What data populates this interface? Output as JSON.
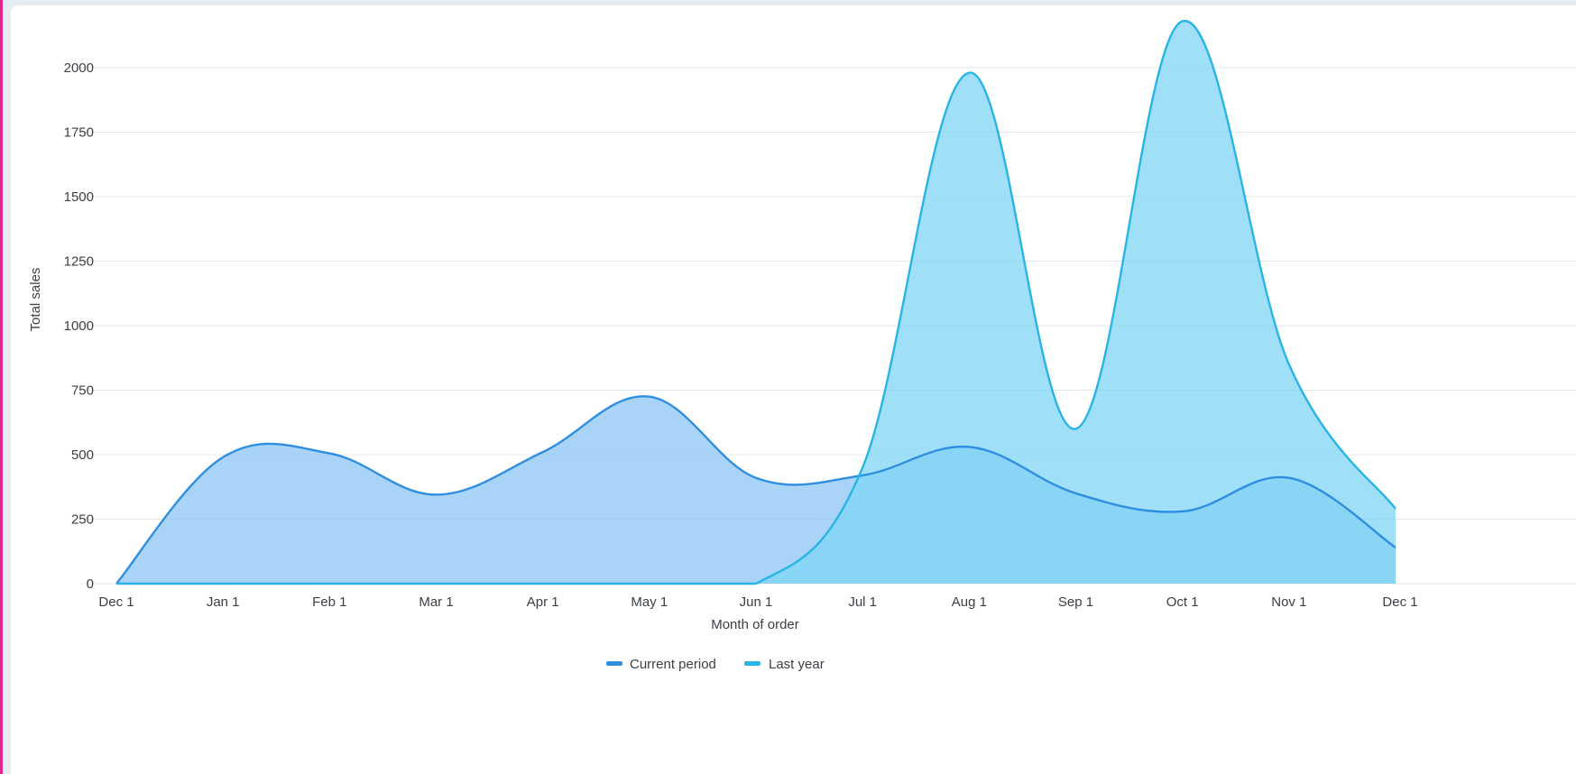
{
  "chart_data": {
    "type": "area",
    "xlabel": "Month of order",
    "ylabel": "Total sales",
    "x": [
      "Dec 1",
      "Jan 1",
      "Feb 1",
      "Mar 1",
      "Apr 1",
      "May 1",
      "Jun 1",
      "Jul 1",
      "Aug 1",
      "Sep 1",
      "Oct 1",
      "Nov 1",
      "Dec 1"
    ],
    "ylim": [
      0,
      2000
    ],
    "yticks": [
      "0",
      "250",
      "500",
      "750",
      "1000",
      "1250",
      "1500",
      "1750",
      "2000"
    ],
    "grid": true,
    "legend_position": "bottom",
    "series": [
      {
        "name": "Current period",
        "color": "#2e8fe0",
        "fill": "#8cc6f4",
        "values": [
          0,
          490,
          505,
          345,
          510,
          725,
          410,
          420,
          530,
          350,
          280,
          410,
          140
        ]
      },
      {
        "name": "Last year",
        "color": "#28b5e6",
        "fill": "#7fd5f5",
        "values": [
          0,
          0,
          0,
          0,
          0,
          0,
          0,
          450,
          1980,
          600,
          2180,
          850,
          290
        ]
      }
    ]
  }
}
